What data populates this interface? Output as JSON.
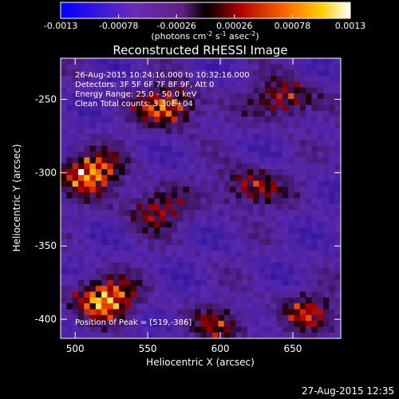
{
  "chart_data": {
    "type": "heatmap",
    "title": "Reconstructed RHESSI Image",
    "xlabel": "Heliocentric X (arcsec)",
    "ylabel": "Heliocentric Y (arcsec)",
    "xlim": [
      490,
      683
    ],
    "ylim": [
      -413,
      -222
    ],
    "x_ticks": [
      500,
      550,
      600,
      650
    ],
    "y_ticks": [
      -250,
      -300,
      -350,
      -400
    ],
    "colorbar": {
      "min": -0.0013,
      "max": 0.0013,
      "ticks": [
        "-0.0013",
        "-0.00078",
        "-0.00026",
        "0.00026",
        "0.00078",
        "0.0013"
      ],
      "tick_values": [
        -0.0013,
        -0.00078,
        -0.00026,
        0.00026,
        0.00078,
        0.0013
      ],
      "unit_label": "(photons cm",
      "unit_sup1": "-2",
      "unit_mid": " s",
      "unit_sup2": "-1",
      "unit_mid2": " asec",
      "unit_sup3": "-2",
      "unit_end": ")"
    },
    "annotations": {
      "time_range": "26-Aug-2015 10:24:16.000 to 10:32:16.000",
      "detectors": "Detectors: 3F 5F 6F 7F 8F 9F, Att 0",
      "energy": "Energy Range: 25.0 - 50.0 keV",
      "algorithm": "Clean     Total counts: 3.30E+04",
      "peak": "Position of Peak = [519,-386]"
    },
    "bright_regions": [
      {
        "x": 520,
        "y": -386,
        "strength": 1.0
      },
      {
        "x": 510,
        "y": -300,
        "strength": 0.95
      },
      {
        "x": 565,
        "y": -255,
        "strength": 0.85
      },
      {
        "x": 645,
        "y": -250,
        "strength": 0.7
      },
      {
        "x": 620,
        "y": -310,
        "strength": 0.65
      },
      {
        "x": 555,
        "y": -325,
        "strength": 0.6
      },
      {
        "x": 660,
        "y": -395,
        "strength": 0.55
      },
      {
        "x": 600,
        "y": -405,
        "strength": 0.5
      }
    ],
    "grid": false
  },
  "footer": {
    "timestamp": "27-Aug-2015 12:35"
  },
  "colors": {
    "background": "#000000",
    "text": "#ffffff"
  }
}
